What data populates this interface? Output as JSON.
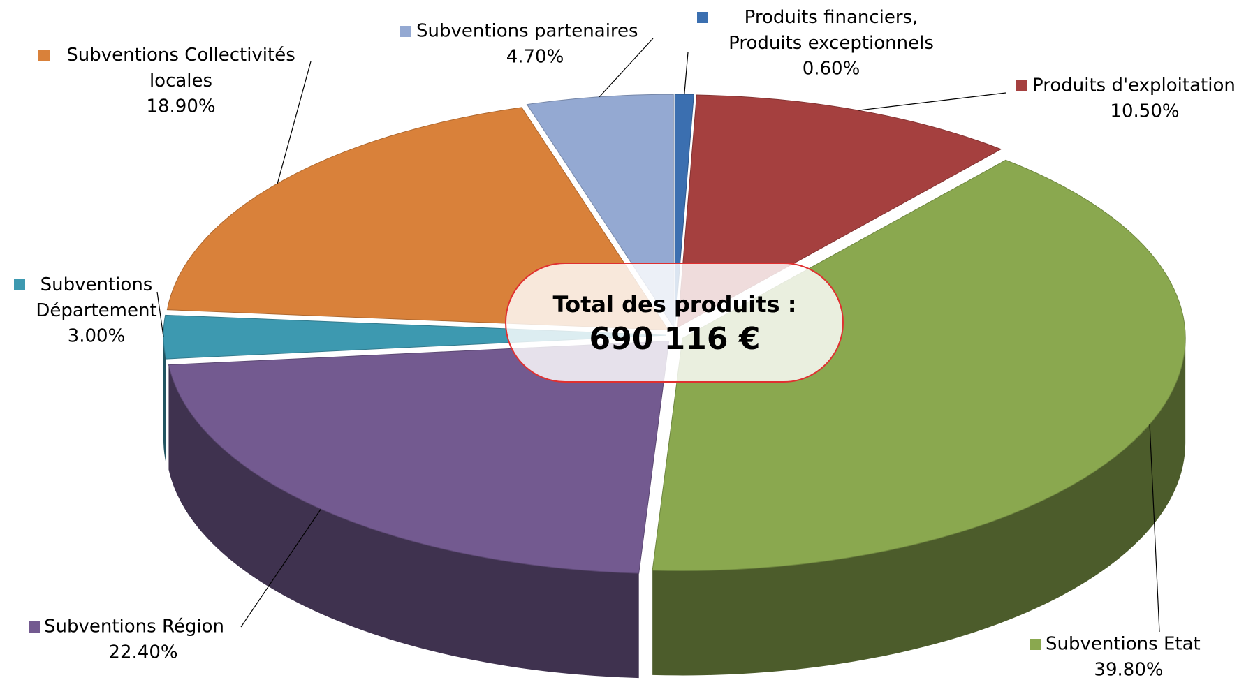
{
  "chart_data": {
    "type": "pie3d",
    "categories": [
      "Produits financiers, Produits exceptionnels",
      "Produits d'exploitation",
      "Subventions Etat",
      "Subventions Région",
      "Subventions Département",
      "Subventions Collectivités locales",
      "Subventions partenaires"
    ],
    "values": [
      0.6,
      10.5,
      39.8,
      22.4,
      3.0,
      18.9,
      4.7
    ],
    "value_labels": [
      "0.60%",
      "10.50%",
      "39.80%",
      "22.40%",
      "3.00%",
      "18.90%",
      "4.70%"
    ],
    "colors": [
      "#3b6fb0",
      "#a5403f",
      "#8aa84f",
      "#735a90",
      "#3d99b0",
      "#d9813a",
      "#94a9d2"
    ],
    "annotations": [
      "Total des produits :",
      "690 116 €"
    ]
  }
}
